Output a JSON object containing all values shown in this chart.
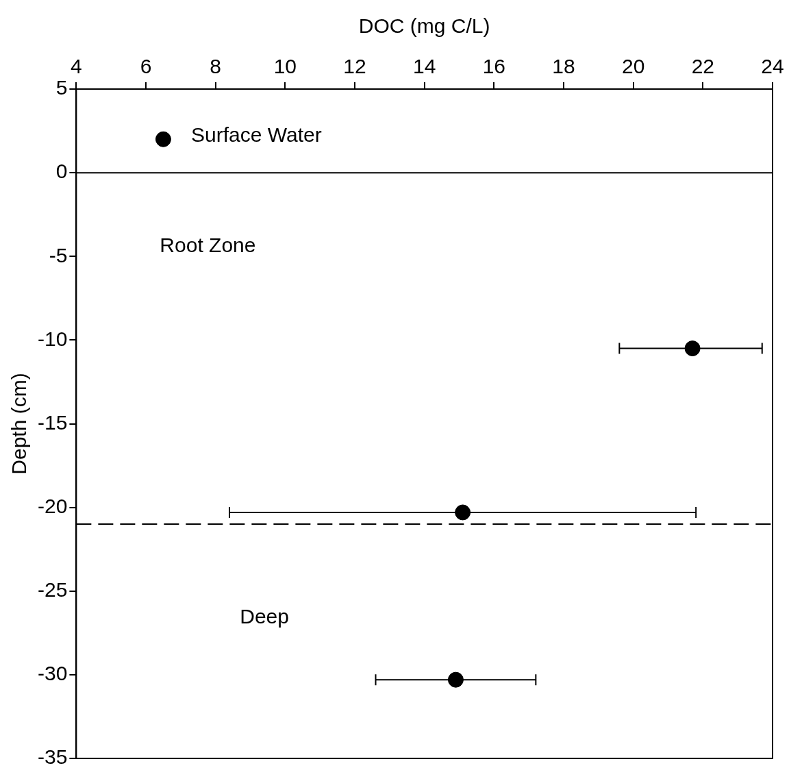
{
  "chart_data": {
    "type": "scatter",
    "xlabel": "DOC (mg C/L)",
    "ylabel": "Depth (cm)",
    "x": [
      6.5,
      21.7,
      15.1,
      14.9
    ],
    "series": [
      {
        "color": "#000000",
        "values": [
          2,
          -10.5,
          -20.3,
          -30.3
        ],
        "xerrors": [
          null,
          [
            19.6,
            23.7
          ],
          [
            8.4,
            21.8
          ],
          [
            12.6,
            17.2
          ]
        ]
      }
    ],
    "xlim": [
      4,
      24
    ],
    "xticks": [
      4,
      6,
      8,
      10,
      12,
      14,
      16,
      18,
      20,
      22,
      24
    ],
    "ylim": [
      -35,
      5
    ],
    "yticks": [
      -35,
      -30,
      -25,
      -20,
      -15,
      -10,
      -5,
      0,
      5
    ],
    "ref_lines": [
      {
        "axis": "y",
        "value": 0,
        "line_style": "solid"
      },
      {
        "axis": "y",
        "value": -21,
        "line_style": "dashed"
      }
    ],
    "annotations": [
      "Surface Water",
      "Root Zone",
      "Deep"
    ],
    "marker": "circle",
    "grid": false,
    "legend": false
  }
}
